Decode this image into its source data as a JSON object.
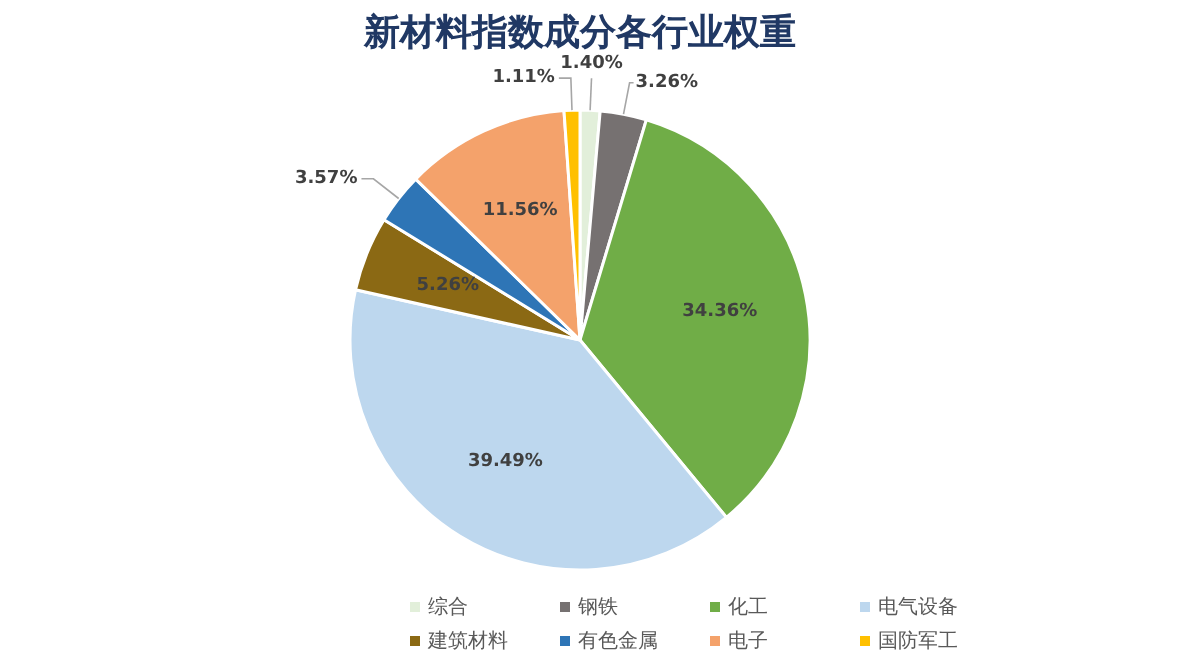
{
  "chart_data": {
    "type": "pie",
    "title": "新材料指数成分各行业权重",
    "categories": [
      "综合",
      "钢铁",
      "化工",
      "电气设备",
      "建筑材料",
      "有色金属",
      "电子",
      "国防军工"
    ],
    "values": [
      1.4,
      3.26,
      34.36,
      39.49,
      5.26,
      3.57,
      11.56,
      1.11
    ],
    "colors": [
      "#e2efda",
      "#767171",
      "#70ad47",
      "#bdd7ee",
      "#8b6914",
      "#2e75b6",
      "#f4a26b",
      "#ffc000"
    ],
    "value_labels": [
      "1.40%",
      "3.26%",
      "34.36%",
      "39.49%",
      "5.26%",
      "3.57%",
      "11.56%",
      "1.11%"
    ],
    "legend": "bottom"
  }
}
